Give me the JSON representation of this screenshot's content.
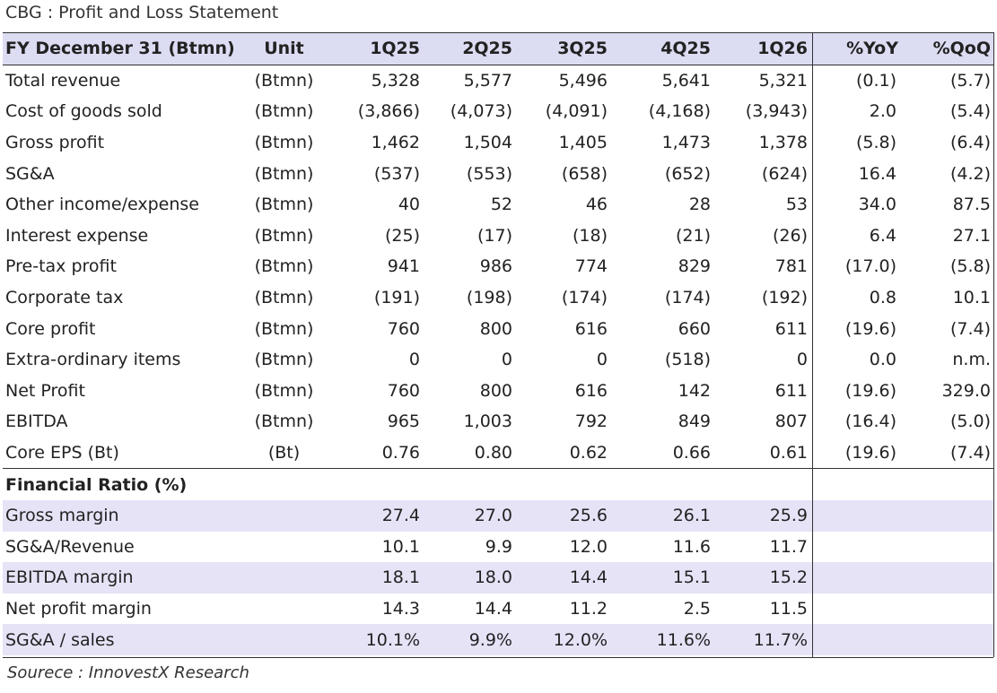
{
  "title": "CBG : Profit and Loss Statement",
  "header": [
    "FY December 31 (Btmn)",
    "Unit",
    "1Q25",
    "2Q25",
    "3Q25",
    "4Q25",
    "1Q26",
    "%YoY",
    "%QoQ"
  ],
  "rows": [
    [
      "Total revenue",
      "(Btmn)",
      "5,328",
      "5,577",
      "5,496",
      "5,641",
      "5,321",
      "(0.1)",
      "(5.7)"
    ],
    [
      "Cost of goods sold",
      "(Btmn)",
      "(3,866)",
      "(4,073)",
      "(4,091)",
      "(4,168)",
      "(3,943)",
      "2.0",
      "(5.4)"
    ],
    [
      "Gross profit",
      "(Btmn)",
      "1,462",
      "1,504",
      "1,405",
      "1,473",
      "1,378",
      "(5.8)",
      "(6.4)"
    ],
    [
      "SG&A",
      "(Btmn)",
      "(537)",
      "(553)",
      "(658)",
      "(652)",
      "(624)",
      "16.4",
      "(4.2)"
    ],
    [
      "Other income/expense",
      "(Btmn)",
      "40",
      "52",
      "46",
      "28",
      "53",
      "34.0",
      "87.5"
    ],
    [
      "Interest expense",
      "(Btmn)",
      "(25)",
      "(17)",
      "(18)",
      "(21)",
      "(26)",
      "6.4",
      "27.1"
    ],
    [
      "Pre-tax profit",
      "(Btmn)",
      "941",
      "986",
      "774",
      "829",
      "781",
      "(17.0)",
      "(5.8)"
    ],
    [
      "Corporate tax",
      "(Btmn)",
      "(191)",
      "(198)",
      "(174)",
      "(174)",
      "(192)",
      "0.8",
      "10.1"
    ],
    [
      "Core profit",
      "(Btmn)",
      "760",
      "800",
      "616",
      "660",
      "611",
      "(19.6)",
      "(7.4)"
    ],
    [
      "Extra-ordinary items",
      "(Btmn)",
      "0",
      "0",
      "0",
      "(518)",
      "0",
      "0.0",
      "n.m."
    ],
    [
      "Net Profit",
      "(Btmn)",
      "760",
      "800",
      "616",
      "142",
      "611",
      "(19.6)",
      "329.0"
    ],
    [
      "EBITDA",
      "(Btmn)",
      "965",
      "1,003",
      "792",
      "849",
      "807",
      "(16.4)",
      "(5.0)"
    ],
    [
      "Core EPS (Bt)",
      "(Bt)",
      "0.76",
      "0.80",
      "0.62",
      "0.66",
      "0.61",
      "(19.6)",
      "(7.4)"
    ]
  ],
  "ratio_section_label": "Financial Ratio (%)",
  "ratios": [
    [
      "Gross margin",
      "27.4",
      "27.0",
      "25.6",
      "26.1",
      "25.9"
    ],
    [
      "SG&A/Revenue",
      "10.1",
      "9.9",
      "12.0",
      "11.6",
      "11.7"
    ],
    [
      "EBITDA margin",
      "18.1",
      "18.0",
      "14.4",
      "15.1",
      "15.2"
    ],
    [
      "Net profit margin",
      "14.3",
      "14.4",
      "11.2",
      "2.5",
      "11.5"
    ],
    [
      "SG&A / sales",
      "10.1%",
      "9.9%",
      "12.0%",
      "11.6%",
      "11.7%"
    ]
  ],
  "source": "Sourece : InnovestX Research",
  "colors": {
    "header_bg": "#dcdcf3",
    "shade_bg": "#e6e3f7",
    "rule": "#333333"
  }
}
